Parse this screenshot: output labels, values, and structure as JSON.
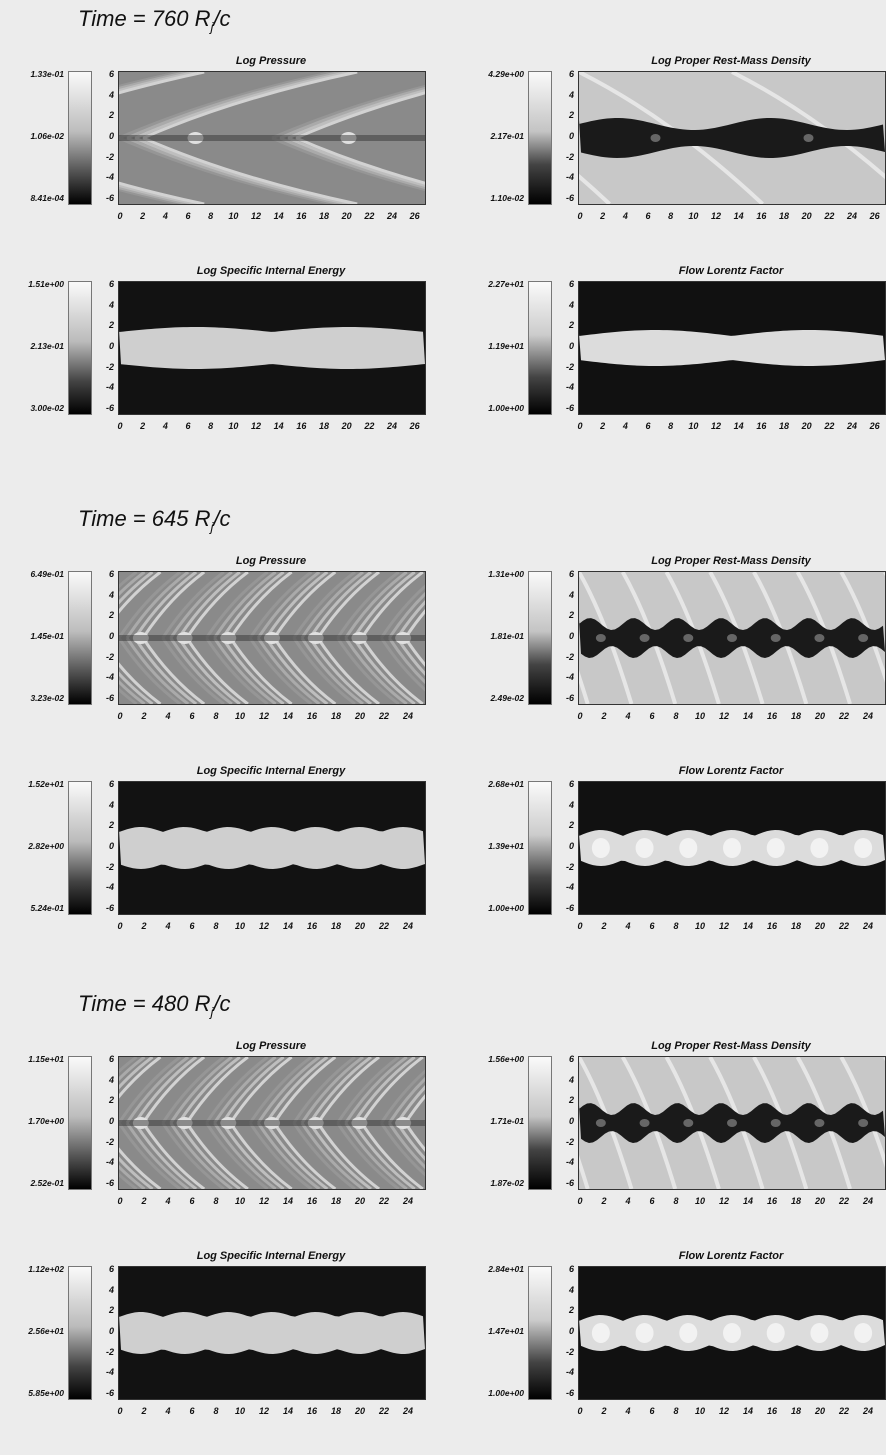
{
  "sections": [
    {
      "time_label": "Time  =  760  R",
      "time_sub": "j",
      "time_unit": "/c",
      "panels": [
        {
          "title": "Log Pressure",
          "cbar": [
            "1.33e-01",
            "1.06e-02",
            "8.41e-04"
          ],
          "xticks": [
            "0",
            "2",
            "4",
            "6",
            "8",
            "10",
            "12",
            "14",
            "16",
            "18",
            "20",
            "22",
            "24",
            "26"
          ],
          "style": "pressure"
        },
        {
          "title": "Log Proper Rest-Mass Density",
          "cbar": [
            "4.29e+00",
            "2.17e-01",
            "1.10e-02"
          ],
          "xticks": [
            "0",
            "2",
            "4",
            "6",
            "8",
            "10",
            "12",
            "14",
            "16",
            "18",
            "20",
            "22",
            "24",
            "26"
          ],
          "style": "density"
        },
        {
          "title": "Log Specific Internal Energy",
          "cbar": [
            "1.51e+00",
            "2.13e-01",
            "3.00e-02"
          ],
          "xticks": [
            "0",
            "2",
            "4",
            "6",
            "8",
            "10",
            "12",
            "14",
            "16",
            "18",
            "20",
            "22",
            "24",
            "26"
          ],
          "style": "energy"
        },
        {
          "title": "Flow Lorentz Factor",
          "cbar": [
            "2.27e+01",
            "1.19e+01",
            "1.00e+00"
          ],
          "xticks": [
            "0",
            "2",
            "4",
            "6",
            "8",
            "10",
            "12",
            "14",
            "16",
            "18",
            "20",
            "22",
            "24",
            "26"
          ],
          "style": "lorentz"
        }
      ]
    },
    {
      "time_label": "Time  =  645  R",
      "time_sub": "j",
      "time_unit": "/c",
      "panels": [
        {
          "title": "Log Pressure",
          "cbar": [
            "6.49e-01",
            "1.45e-01",
            "3.23e-02"
          ],
          "xticks": [
            "0",
            "2",
            "4",
            "6",
            "8",
            "10",
            "12",
            "14",
            "16",
            "18",
            "20",
            "22",
            "24"
          ],
          "style": "pressure"
        },
        {
          "title": "Log Proper Rest-Mass Density",
          "cbar": [
            "1.31e+00",
            "1.81e-01",
            "2.49e-02"
          ],
          "xticks": [
            "0",
            "2",
            "4",
            "6",
            "8",
            "10",
            "12",
            "14",
            "16",
            "18",
            "20",
            "22",
            "24"
          ],
          "style": "density"
        },
        {
          "title": "Log Specific Internal Energy",
          "cbar": [
            "1.52e+01",
            "2.82e+00",
            "5.24e-01"
          ],
          "xticks": [
            "0",
            "2",
            "4",
            "6",
            "8",
            "10",
            "12",
            "14",
            "16",
            "18",
            "20",
            "22",
            "24"
          ],
          "style": "energy"
        },
        {
          "title": "Flow Lorentz Factor",
          "cbar": [
            "2.68e+01",
            "1.39e+01",
            "1.00e+00"
          ],
          "xticks": [
            "0",
            "2",
            "4",
            "6",
            "8",
            "10",
            "12",
            "14",
            "16",
            "18",
            "20",
            "22",
            "24"
          ],
          "style": "lorentz"
        }
      ]
    },
    {
      "time_label": "Time  =  480  R",
      "time_sub": "j",
      "time_unit": "/c",
      "panels": [
        {
          "title": "Log Pressure",
          "cbar": [
            "1.15e+01",
            "1.70e+00",
            "2.52e-01"
          ],
          "xticks": [
            "0",
            "2",
            "4",
            "6",
            "8",
            "10",
            "12",
            "14",
            "16",
            "18",
            "20",
            "22",
            "24"
          ],
          "style": "pressure"
        },
        {
          "title": "Log Proper Rest-Mass Density",
          "cbar": [
            "1.56e+00",
            "1.71e-01",
            "1.87e-02"
          ],
          "xticks": [
            "0",
            "2",
            "4",
            "6",
            "8",
            "10",
            "12",
            "14",
            "16",
            "18",
            "20",
            "22",
            "24"
          ],
          "style": "density"
        },
        {
          "title": "Log Specific Internal Energy",
          "cbar": [
            "1.12e+02",
            "2.56e+01",
            "5.85e+00"
          ],
          "xticks": [
            "0",
            "2",
            "4",
            "6",
            "8",
            "10",
            "12",
            "14",
            "16",
            "18",
            "20",
            "22",
            "24"
          ],
          "style": "energy"
        },
        {
          "title": "Flow Lorentz Factor",
          "cbar": [
            "2.84e+01",
            "1.47e+01",
            "1.00e+00"
          ],
          "xticks": [
            "0",
            "2",
            "4",
            "6",
            "8",
            "10",
            "12",
            "14",
            "16",
            "18",
            "20",
            "22",
            "24"
          ],
          "style": "lorentz"
        }
      ]
    }
  ],
  "yticks": [
    "6",
    "4",
    "2",
    "0",
    "-2",
    "-4",
    "-6"
  ]
}
